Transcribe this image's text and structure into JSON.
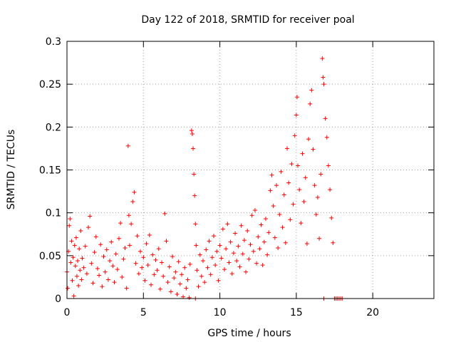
{
  "chart_data": {
    "type": "scatter",
    "title": "Day 122 of 2018, SRMTID for receiver poal",
    "xlabel": "GPS time / hours",
    "ylabel": "SRMTID / TECUs",
    "xlim": [
      0,
      24
    ],
    "ylim": [
      0,
      0.3
    ],
    "x_ticks": [
      0,
      5,
      10,
      15,
      20
    ],
    "x_tick_labels": [
      "0",
      "5",
      "10",
      "15",
      "20"
    ],
    "y_ticks": [
      0,
      0.05,
      0.1,
      0.15,
      0.2,
      0.25,
      0.3
    ],
    "y_tick_labels": [
      "0",
      "0.05",
      "0.1",
      "0.15",
      "0.2",
      "0.25",
      "0.3"
    ],
    "grid": true,
    "marker": "+",
    "series": [
      {
        "name": "SRMTID",
        "color": "#ff0000",
        "points": [
          [
            0.0,
            0.031
          ],
          [
            0.05,
            0.012
          ],
          [
            0.1,
            0.055
          ],
          [
            0.15,
            0.085
          ],
          [
            0.2,
            0.093
          ],
          [
            0.25,
            0.042
          ],
          [
            0.3,
            0.067
          ],
          [
            0.35,
            0.021
          ],
          [
            0.4,
            0.048
          ],
          [
            0.45,
            0.003
          ],
          [
            0.5,
            0.062
          ],
          [
            0.55,
            0.038
          ],
          [
            0.6,
            0.071
          ],
          [
            0.65,
            0.026
          ],
          [
            0.7,
            0.044
          ],
          [
            0.75,
            0.015
          ],
          [
            0.8,
            0.058
          ],
          [
            0.85,
            0.033
          ],
          [
            0.9,
            0.079
          ],
          [
            0.95,
            0.022
          ],
          [
            1.0,
            0.047
          ],
          [
            1.1,
            0.036
          ],
          [
            1.2,
            0.061
          ],
          [
            1.3,
            0.029
          ],
          [
            1.4,
            0.083
          ],
          [
            1.5,
            0.096
          ],
          [
            1.6,
            0.041
          ],
          [
            1.7,
            0.018
          ],
          [
            1.8,
            0.054
          ],
          [
            1.9,
            0.072
          ],
          [
            2.0,
            0.035
          ],
          [
            2.1,
            0.027
          ],
          [
            2.2,
            0.063
          ],
          [
            2.3,
            0.014
          ],
          [
            2.4,
            0.049
          ],
          [
            2.5,
            0.031
          ],
          [
            2.6,
            0.057
          ],
          [
            2.7,
            0.022
          ],
          [
            2.8,
            0.044
          ],
          [
            2.9,
            0.066
          ],
          [
            3.0,
            0.038
          ],
          [
            3.1,
            0.019
          ],
          [
            3.2,
            0.052
          ],
          [
            3.3,
            0.034
          ],
          [
            3.4,
            0.07
          ],
          [
            3.5,
            0.088
          ],
          [
            3.6,
            0.025
          ],
          [
            3.7,
            0.046
          ],
          [
            3.8,
            0.059
          ],
          [
            3.9,
            0.012
          ],
          [
            4.0,
            0.178
          ],
          [
            4.05,
            0.097
          ],
          [
            4.1,
            0.062
          ],
          [
            4.2,
            0.087
          ],
          [
            4.3,
            0.113
          ],
          [
            4.4,
            0.124
          ],
          [
            4.5,
            0.041
          ],
          [
            4.6,
            0.073
          ],
          [
            4.7,
            0.029
          ],
          [
            4.8,
            0.055
          ],
          [
            4.9,
            0.036
          ],
          [
            5.0,
            0.048
          ],
          [
            5.1,
            0.021
          ],
          [
            5.2,
            0.064
          ],
          [
            5.3,
            0.039
          ],
          [
            5.4,
            0.074
          ],
          [
            5.5,
            0.016
          ],
          [
            5.6,
            0.051
          ],
          [
            5.7,
            0.028
          ],
          [
            5.8,
            0.045
          ],
          [
            5.9,
            0.033
          ],
          [
            6.0,
            0.058
          ],
          [
            6.1,
            0.011
          ],
          [
            6.2,
            0.042
          ],
          [
            6.3,
            0.026
          ],
          [
            6.4,
            0.099
          ],
          [
            6.5,
            0.067
          ],
          [
            6.6,
            0.019
          ],
          [
            6.7,
            0.037
          ],
          [
            6.8,
            0.008
          ],
          [
            6.9,
            0.049
          ],
          [
            7.0,
            0.024
          ],
          [
            7.1,
            0.031
          ],
          [
            7.2,
            0.005
          ],
          [
            7.3,
            0.043
          ],
          [
            7.4,
            0.017
          ],
          [
            7.5,
            0.028
          ],
          [
            7.6,
            0.002
          ],
          [
            7.7,
            0.036
          ],
          [
            7.8,
            0.012
          ],
          [
            7.9,
            0.022
          ],
          [
            8.0,
            0.001
          ],
          [
            8.05,
            0.04
          ],
          [
            8.15,
            0.196
          ],
          [
            8.2,
            0.192
          ],
          [
            8.25,
            0.175
          ],
          [
            8.3,
            0.145
          ],
          [
            8.35,
            0.12
          ],
          [
            8.4,
            0.087
          ],
          [
            8.45,
            0.062
          ],
          [
            8.5,
            0.033
          ],
          [
            8.6,
            0.014
          ],
          [
            8.7,
            0.051
          ],
          [
            8.8,
            0.026
          ],
          [
            8.9,
            0.044
          ],
          [
            9.0,
            0.019
          ],
          [
            9.1,
            0.057
          ],
          [
            9.2,
            0.036
          ],
          [
            9.3,
            0.067
          ],
          [
            9.4,
            0.028
          ],
          [
            9.5,
            0.048
          ],
          [
            9.6,
            0.073
          ],
          [
            9.7,
            0.039
          ],
          [
            9.8,
            0.055
          ],
          [
            9.9,
            0.021
          ],
          [
            10.0,
            0.062
          ],
          [
            10.1,
            0.047
          ],
          [
            10.2,
            0.081
          ],
          [
            10.3,
            0.034
          ],
          [
            10.4,
            0.058
          ],
          [
            10.5,
            0.087
          ],
          [
            10.6,
            0.042
          ],
          [
            10.7,
            0.066
          ],
          [
            10.8,
            0.029
          ],
          [
            10.9,
            0.053
          ],
          [
            11.0,
            0.076
          ],
          [
            11.1,
            0.044
          ],
          [
            11.2,
            0.061
          ],
          [
            11.3,
            0.037
          ],
          [
            11.4,
            0.085
          ],
          [
            11.5,
            0.052
          ],
          [
            11.6,
            0.068
          ],
          [
            11.7,
            0.031
          ],
          [
            11.8,
            0.079
          ],
          [
            11.9,
            0.046
          ],
          [
            12.0,
            0.063
          ],
          [
            12.1,
            0.097
          ],
          [
            12.2,
            0.055
          ],
          [
            12.3,
            0.103
          ],
          [
            12.4,
            0.041
          ],
          [
            12.5,
            0.072
          ],
          [
            12.6,
            0.058
          ],
          [
            12.7,
            0.086
          ],
          [
            12.8,
            0.039
          ],
          [
            12.9,
            0.066
          ],
          [
            13.0,
            0.093
          ],
          [
            13.1,
            0.051
          ],
          [
            13.2,
            0.077
          ],
          [
            13.3,
            0.126
          ],
          [
            13.4,
            0.144
          ],
          [
            13.5,
            0.108
          ],
          [
            13.6,
            0.071
          ],
          [
            13.7,
            0.132
          ],
          [
            13.8,
            0.059
          ],
          [
            13.9,
            0.098
          ],
          [
            14.0,
            0.148
          ],
          [
            14.1,
            0.083
          ],
          [
            14.2,
            0.121
          ],
          [
            14.3,
            0.065
          ],
          [
            14.4,
            0.175
          ],
          [
            14.5,
            0.135
          ],
          [
            14.6,
            0.092
          ],
          [
            14.7,
            0.157
          ],
          [
            14.8,
            0.11
          ],
          [
            14.9,
            0.19
          ],
          [
            15.0,
            0.214
          ],
          [
            15.05,
            0.235
          ],
          [
            15.1,
            0.155
          ],
          [
            15.2,
            0.127
          ],
          [
            15.3,
            0.088
          ],
          [
            15.4,
            0.169
          ],
          [
            15.5,
            0.113
          ],
          [
            15.6,
            0.141
          ],
          [
            15.7,
            0.064
          ],
          [
            15.8,
            0.186
          ],
          [
            15.9,
            0.227
          ],
          [
            16.0,
            0.243
          ],
          [
            16.1,
            0.174
          ],
          [
            16.2,
            0.132
          ],
          [
            16.3,
            0.098
          ],
          [
            16.4,
            0.118
          ],
          [
            16.5,
            0.07
          ],
          [
            16.6,
            0.145
          ],
          [
            16.7,
            0.28
          ],
          [
            16.75,
            0.258
          ],
          [
            16.8,
            0.25
          ],
          [
            16.9,
            0.21
          ],
          [
            17.0,
            0.188
          ],
          [
            17.1,
            0.155
          ],
          [
            17.2,
            0.127
          ],
          [
            17.3,
            0.094
          ],
          [
            17.4,
            0.065
          ],
          [
            17.5,
            0.0
          ],
          [
            17.6,
            0.0
          ],
          [
            17.7,
            0.0
          ],
          [
            17.8,
            0.0
          ],
          [
            17.9,
            0.0
          ],
          [
            18.0,
            0.0
          ],
          [
            16.8,
            0.0
          ],
          [
            8.4,
            0.0
          ]
        ]
      }
    ]
  }
}
